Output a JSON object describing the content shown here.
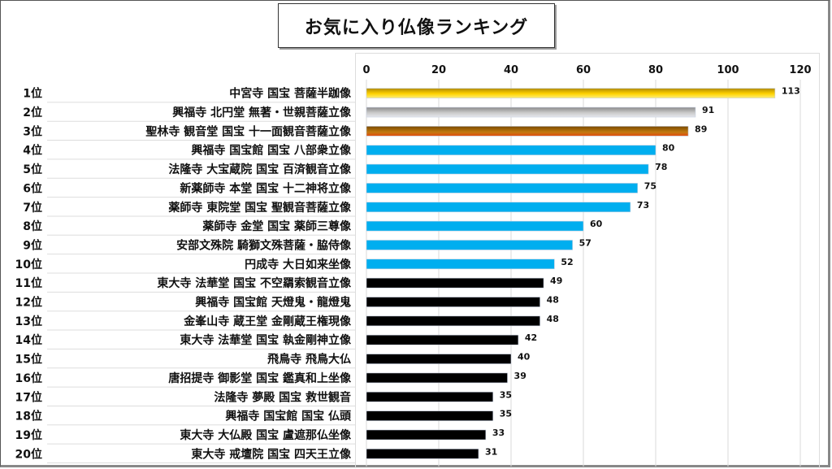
{
  "chart_data": {
    "type": "bar",
    "orientation": "horizontal",
    "title": "お気に入り仏像ランキング",
    "xlabel": "",
    "ylabel": "",
    "xlim": [
      0,
      120
    ],
    "x_ticks": [
      "0",
      "20",
      "40",
      "60",
      "80",
      "100",
      "120"
    ],
    "x_tick_values": [
      0,
      20,
      40,
      60,
      80,
      100,
      120
    ],
    "grid": true,
    "axis_position": "top",
    "legend": "none",
    "ranks": [
      "1位",
      "2位",
      "3位",
      "4位",
      "5位",
      "6位",
      "7位",
      "8位",
      "9位",
      "10位",
      "11位",
      "12位",
      "13位",
      "14位",
      "15位",
      "16位",
      "17位",
      "18位",
      "19位",
      "20位"
    ],
    "categories": [
      "中宮寺 国宝 菩薩半跏像",
      "興福寺 北円堂 無著・世親菩薩立像",
      "聖林寺 観音堂 国宝 十一面観音菩薩立像",
      "興福寺 国宝館 国宝 八部衆立像",
      "法隆寺 大宝蔵院 国宝 百済観音立像",
      "新薬師寺 本堂 国宝 十二神将立像",
      "薬師寺 東院堂 国宝 聖観音菩薩立像",
      "薬師寺 金堂 国宝 薬師三尊像",
      "安部文殊院 騎獅文殊菩薩・脇侍像",
      "円成寺 大日如来坐像",
      "東大寺 法華堂 国宝 不空羂索観音立像",
      "興福寺 国宝館 天燈鬼・龍燈鬼",
      "金峯山寺 蔵王堂 金剛蔵王権現像",
      "東大寺 法華堂 国宝 執金剛神立像",
      "飛鳥寺 飛鳥大仏",
      "唐招提寺 御影堂 国宝 鑑真和上坐像",
      "法隆寺 夢殿 国宝 救世観音",
      "興福寺 国宝館 国宝 仏頭",
      "東大寺 大仏殿 国宝 盧遮那仏坐像",
      "東大寺 戒壇院 国宝 四天王立像"
    ],
    "values": [
      113,
      91,
      89,
      80,
      78,
      75,
      73,
      60,
      57,
      52,
      49,
      48,
      48,
      42,
      40,
      39,
      35,
      35,
      33,
      31
    ],
    "bar_styles": [
      "gold",
      "silver",
      "bronze",
      "blue",
      "blue",
      "blue",
      "blue",
      "blue",
      "blue",
      "blue",
      "black",
      "black",
      "black",
      "black",
      "black",
      "black",
      "black",
      "black",
      "black",
      "black"
    ],
    "colors": {
      "gold_top": "#b08a00",
      "gold_mid": "#ffd200",
      "gold_bottom": "#fff07a",
      "silver_top": "#8a8a8a",
      "silver_mid": "#c9c9c9",
      "silver_bottom": "#e6e8ee",
      "bronze_top": "#7a4a00",
      "bronze_mid": "#c27a10",
      "bronze_bottom": "#e24a10",
      "blue": "#00aeef",
      "black": "#000000",
      "grid": "#d9d9d9",
      "row_divider": "#dddddd"
    }
  }
}
